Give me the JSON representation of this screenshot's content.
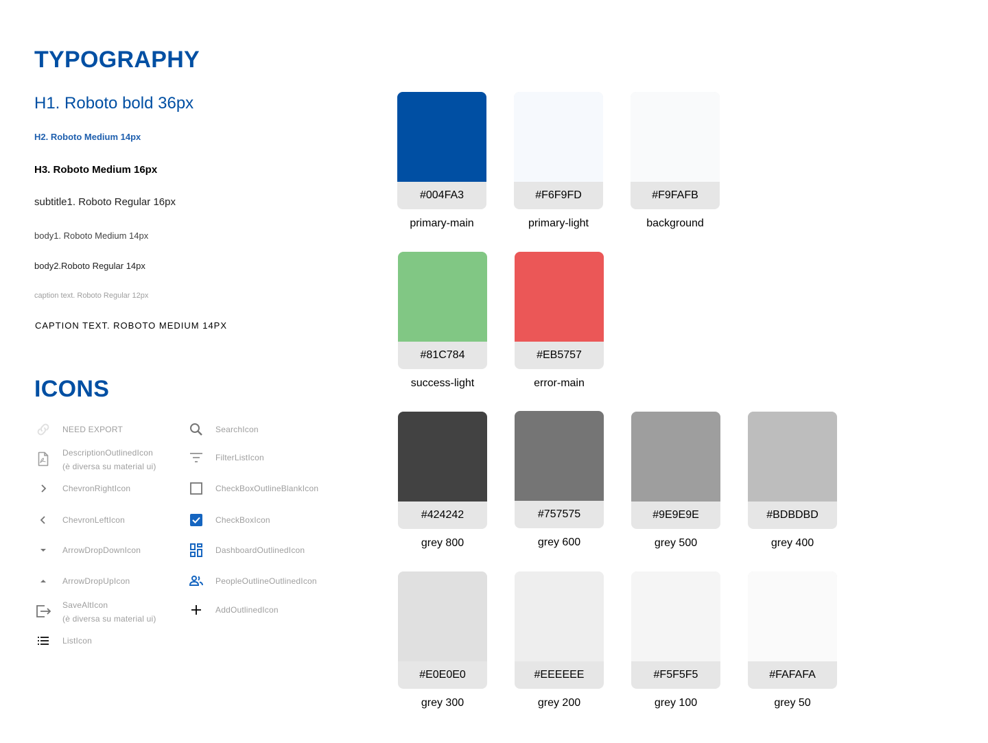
{
  "typography": {
    "title": "TYPOGRAPHY",
    "h1": "H1. Roboto bold 36px",
    "h2": "H2. Roboto Medium 14px",
    "h3": "H3. Roboto Medium 16px",
    "subtitle1": "subtitle1. Roboto Regular 16px",
    "body1": "body1. Roboto Medium 14px",
    "body2": "body2.Roboto Regular 14px",
    "caption": "caption text. Roboto Regular 12px",
    "caption_caps": "CAPTION TEXT. ROBOTO MEDIUM 14PX"
  },
  "icons": {
    "title": "ICONS",
    "left": [
      {
        "icon": "link-icon",
        "label": "NEED EXPORT",
        "note": ""
      },
      {
        "icon": "description-outlined-icon",
        "label": "DescriptionOutlinedIcon",
        "note": "(è diversa su material ui)"
      },
      {
        "icon": "chevron-right-icon",
        "label": "ChevronRightIcon",
        "note": ""
      },
      {
        "icon": "chevron-left-icon",
        "label": "ChevronLeftIcon",
        "note": ""
      },
      {
        "icon": "arrow-drop-down-icon",
        "label": "ArrowDropDownIcon",
        "note": ""
      },
      {
        "icon": "arrow-drop-up-icon",
        "label": "ArrowDropUpIcon",
        "note": ""
      },
      {
        "icon": "save-alt-icon",
        "label": "SaveAltIcon",
        "note": "(è diversa su material ui)"
      },
      {
        "icon": "list-icon",
        "label": "ListIcon",
        "note": ""
      }
    ],
    "right": [
      {
        "icon": "search-icon",
        "label": "SearchIcon"
      },
      {
        "icon": "filter-list-icon",
        "label": "FilterListIcon"
      },
      {
        "icon": "checkbox-outline-blank-icon",
        "label": "CheckBoxOutlineBlankIcon"
      },
      {
        "icon": "checkbox-icon",
        "label": "CheckBoxIcon"
      },
      {
        "icon": "dashboard-outlined-icon",
        "label": "DashboardOutlinedIcon"
      },
      {
        "icon": "people-outline-outlined-icon",
        "label": "PeopleOutlineOutlinedIcon"
      },
      {
        "icon": "add-outlined-icon",
        "label": "AddOutlinedIcon"
      }
    ]
  },
  "palette": {
    "primary_main": {
      "hex": "#004FA3",
      "name": "primary-main"
    },
    "primary_light": {
      "hex": "#F6F9FD",
      "name": "primary-light"
    },
    "background": {
      "hex": "#F9FAFB",
      "name": "background"
    },
    "success_light": {
      "hex": "#81C784",
      "name": "success-light"
    },
    "error_main": {
      "hex": "#EB5757",
      "name": "error-main"
    },
    "grey_800": {
      "hex": "#424242",
      "name": "grey 800"
    },
    "grey_600": {
      "hex": "#757575",
      "name": "grey 600"
    },
    "grey_500": {
      "hex": "#9E9E9E",
      "name": "grey 500"
    },
    "grey_400": {
      "hex": "#BDBDBD",
      "name": "grey 400"
    },
    "grey_300": {
      "hex": "#E0E0E0",
      "name": "grey 300"
    },
    "grey_200": {
      "hex": "#EEEEEE",
      "name": "grey 200"
    },
    "grey_100": {
      "hex": "#F5F5F5",
      "name": "grey 100"
    },
    "grey_50": {
      "hex": "#FAFAFA",
      "name": "grey 50"
    }
  }
}
